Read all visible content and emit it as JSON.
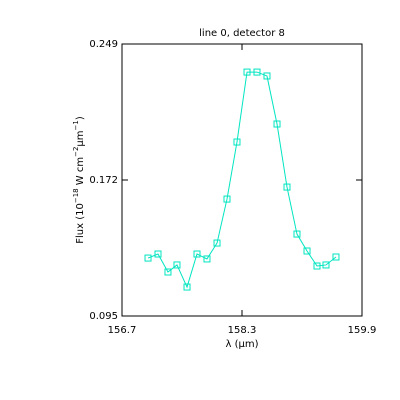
{
  "chart_data": {
    "type": "line",
    "title": "line 0, detector 8",
    "xlabel": "λ (μm)",
    "ylabel_parts": [
      {
        "text": "Flux (10"
      },
      {
        "text": "−18",
        "sup": true
      },
      {
        "text": " W cm"
      },
      {
        "text": "−2",
        "sup": true
      },
      {
        "text": "μm"
      },
      {
        "text": "−1",
        "sup": true
      },
      {
        "text": ")"
      }
    ],
    "xlim": [
      156.7,
      159.9
    ],
    "xticks": [
      {
        "value": 156.7,
        "label": "156.7"
      },
      {
        "value": 158.3,
        "label": "158.3"
      },
      {
        "value": 159.9,
        "label": "159.9"
      }
    ],
    "ylim": [
      0.095,
      0.249
    ],
    "yticks": [
      {
        "value": 0.095,
        "label": "0.095"
      },
      {
        "value": 0.172,
        "label": "0.172"
      },
      {
        "value": 0.249,
        "label": "0.249"
      }
    ],
    "grid": false,
    "series": [
      {
        "color": "#00e5c0",
        "marker": "square",
        "x": [
          157.047,
          157.18,
          157.313,
          157.433,
          157.567,
          157.7,
          157.833,
          157.967,
          158.1,
          158.233,
          158.367,
          158.5,
          158.633,
          158.767,
          158.9,
          159.033,
          159.167,
          159.3,
          159.42,
          159.553
        ],
        "values": [
          0.1278,
          0.1301,
          0.1199,
          0.1239,
          0.1114,
          0.1301,
          0.1273,
          0.1363,
          0.1612,
          0.1935,
          0.2331,
          0.2331,
          0.2309,
          0.2037,
          0.168,
          0.1414,
          0.1318,
          0.1233,
          0.1239,
          0.1284
        ]
      }
    ]
  }
}
